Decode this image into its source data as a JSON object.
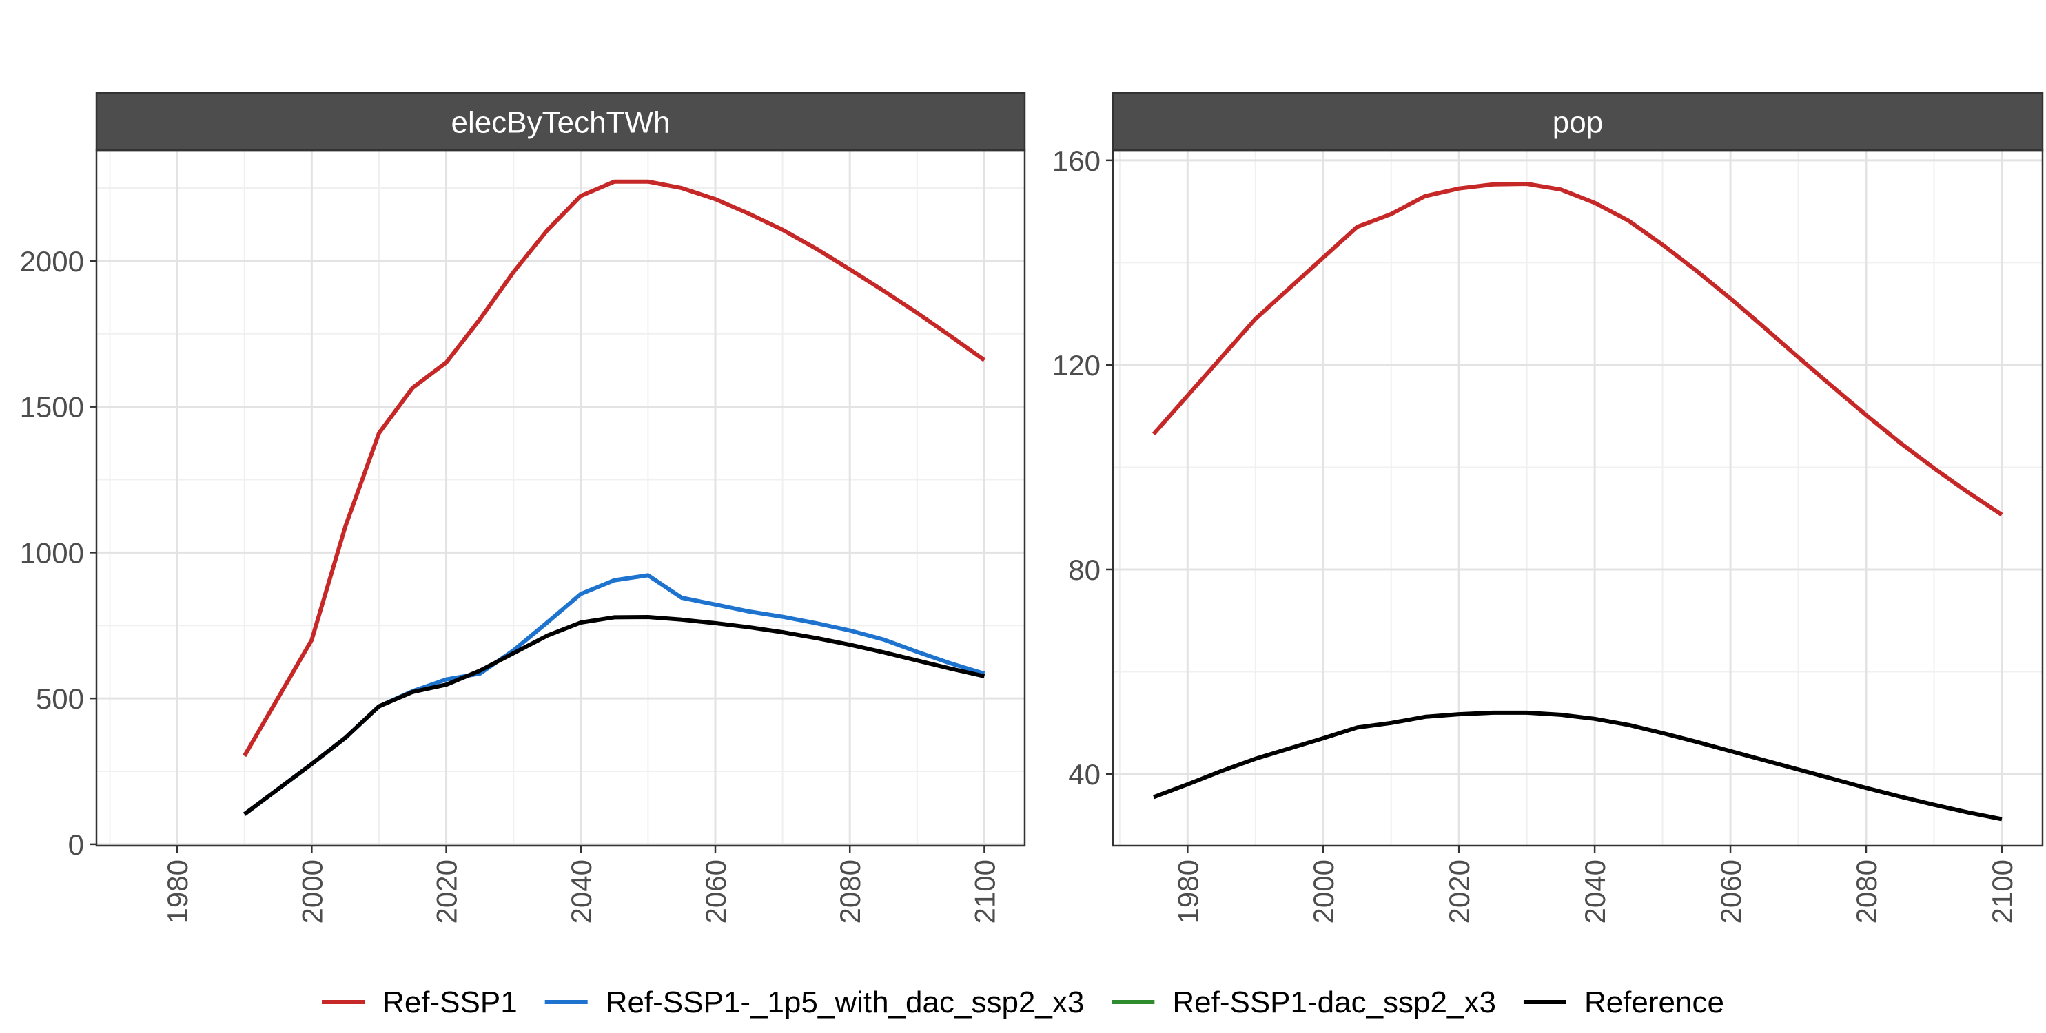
{
  "chart_data": [
    {
      "type": "line",
      "facet_label": "elecByTechTWh",
      "xlim": [
        1968,
        2106
      ],
      "ylim": [
        -5,
        2380
      ],
      "x_ticks": [
        1980,
        2000,
        2020,
        2040,
        2060,
        2080,
        2100
      ],
      "y_ticks": [
        0,
        500,
        1000,
        1500,
        2000
      ],
      "grid": true,
      "series": [
        {
          "name": "Ref-SSP1",
          "color": "#c62828",
          "points": [
            [
              1990,
              303
            ],
            [
              2000,
              700
            ],
            [
              2005,
              1090
            ],
            [
              2010,
              1410
            ],
            [
              2015,
              1565
            ],
            [
              2020,
              1652
            ],
            [
              2025,
              1800
            ],
            [
              2030,
              1962
            ],
            [
              2035,
              2105
            ],
            [
              2040,
              2223
            ],
            [
              2045,
              2272
            ],
            [
              2050,
              2272
            ],
            [
              2055,
              2250
            ],
            [
              2060,
              2212
            ],
            [
              2065,
              2162
            ],
            [
              2070,
              2107
            ],
            [
              2075,
              2042
            ],
            [
              2080,
              1971
            ],
            [
              2085,
              1898
            ],
            [
              2090,
              1822
            ],
            [
              2095,
              1742
            ],
            [
              2100,
              1660
            ]
          ]
        },
        {
          "name": "Ref-SSP1-_1p5_with_dac_ssp2_x3",
          "color": "#1e73cf",
          "points": [
            [
              1990,
              103
            ],
            [
              2000,
              275
            ],
            [
              2005,
              365
            ],
            [
              2010,
              473
            ],
            [
              2015,
              525
            ],
            [
              2020,
              565
            ],
            [
              2025,
              585
            ],
            [
              2030,
              665
            ],
            [
              2035,
              760
            ],
            [
              2040,
              858
            ],
            [
              2045,
              905
            ],
            [
              2050,
              922
            ],
            [
              2055,
              845
            ],
            [
              2060,
              822
            ],
            [
              2065,
              798
            ],
            [
              2070,
              780
            ],
            [
              2075,
              758
            ],
            [
              2080,
              733
            ],
            [
              2085,
              702
            ],
            [
              2090,
              660
            ],
            [
              2095,
              620
            ],
            [
              2100,
              585
            ]
          ]
        },
        {
          "name": "Reference",
          "color": "#000000",
          "points": [
            [
              1990,
              103
            ],
            [
              2000,
              275
            ],
            [
              2005,
              365
            ],
            [
              2010,
              473
            ],
            [
              2015,
              522
            ],
            [
              2020,
              547
            ],
            [
              2025,
              595
            ],
            [
              2030,
              655
            ],
            [
              2035,
              715
            ],
            [
              2040,
              760
            ],
            [
              2045,
              778
            ],
            [
              2050,
              779
            ],
            [
              2055,
              770
            ],
            [
              2060,
              758
            ],
            [
              2065,
              744
            ],
            [
              2070,
              727
            ],
            [
              2075,
              707
            ],
            [
              2080,
              684
            ],
            [
              2085,
              658
            ],
            [
              2090,
              630
            ],
            [
              2095,
              602
            ],
            [
              2100,
              576
            ]
          ]
        }
      ]
    },
    {
      "type": "line",
      "facet_label": "pop",
      "xlim": [
        1969,
        2106
      ],
      "ylim": [
        26,
        162
      ],
      "x_ticks": [
        1980,
        2000,
        2020,
        2040,
        2060,
        2080,
        2100
      ],
      "y_ticks": [
        40,
        80,
        120,
        160
      ],
      "grid": true,
      "series": [
        {
          "name": "Ref-SSP1",
          "color": "#c62828",
          "points": [
            [
              1975,
              106.5
            ],
            [
              1980,
              114
            ],
            [
              1985,
              121.5
            ],
            [
              1990,
              129
            ],
            [
              1995,
              135
            ],
            [
              2000,
              141
            ],
            [
              2005,
              147
            ],
            [
              2010,
              149.5
            ],
            [
              2015,
              153
            ],
            [
              2020,
              154.5
            ],
            [
              2025,
              155.3
            ],
            [
              2030,
              155.4
            ],
            [
              2035,
              154.3
            ],
            [
              2040,
              151.7
            ],
            [
              2045,
              148.2
            ],
            [
              2050,
              143.5
            ],
            [
              2055,
              138.4
            ],
            [
              2060,
              133
            ],
            [
              2065,
              127.3
            ],
            [
              2070,
              121.5
            ],
            [
              2075,
              115.8
            ],
            [
              2080,
              110.2
            ],
            [
              2085,
              104.8
            ],
            [
              2090,
              99.8
            ],
            [
              2095,
              95.1
            ],
            [
              2100,
              90.7
            ]
          ]
        },
        {
          "name": "Reference",
          "color": "#000000",
          "points": [
            [
              1975,
              35.5
            ],
            [
              1980,
              38
            ],
            [
              1985,
              40.6
            ],
            [
              1990,
              43
            ],
            [
              1995,
              45
            ],
            [
              2000,
              47
            ],
            [
              2005,
              49.1
            ],
            [
              2010,
              50
            ],
            [
              2015,
              51.2
            ],
            [
              2020,
              51.7
            ],
            [
              2025,
              52
            ],
            [
              2030,
              52
            ],
            [
              2035,
              51.6
            ],
            [
              2040,
              50.8
            ],
            [
              2045,
              49.6
            ],
            [
              2050,
              48
            ],
            [
              2055,
              46.3
            ],
            [
              2060,
              44.5
            ],
            [
              2065,
              42.7
            ],
            [
              2070,
              40.9
            ],
            [
              2075,
              39.1
            ],
            [
              2080,
              37.3
            ],
            [
              2085,
              35.6
            ],
            [
              2090,
              34
            ],
            [
              2095,
              32.5
            ],
            [
              2100,
              31.2
            ]
          ]
        }
      ]
    }
  ],
  "legend": {
    "position": "bottom",
    "items": [
      {
        "label": "Ref-SSP1",
        "color": "#c62828"
      },
      {
        "label": "Ref-SSP1-_1p5_with_dac_ssp2_x3",
        "color": "#1e73cf"
      },
      {
        "label": "Ref-SSP1-dac_ssp2_x3",
        "color": "#2e8b2e"
      },
      {
        "label": "Reference",
        "color": "#000000"
      }
    ]
  }
}
